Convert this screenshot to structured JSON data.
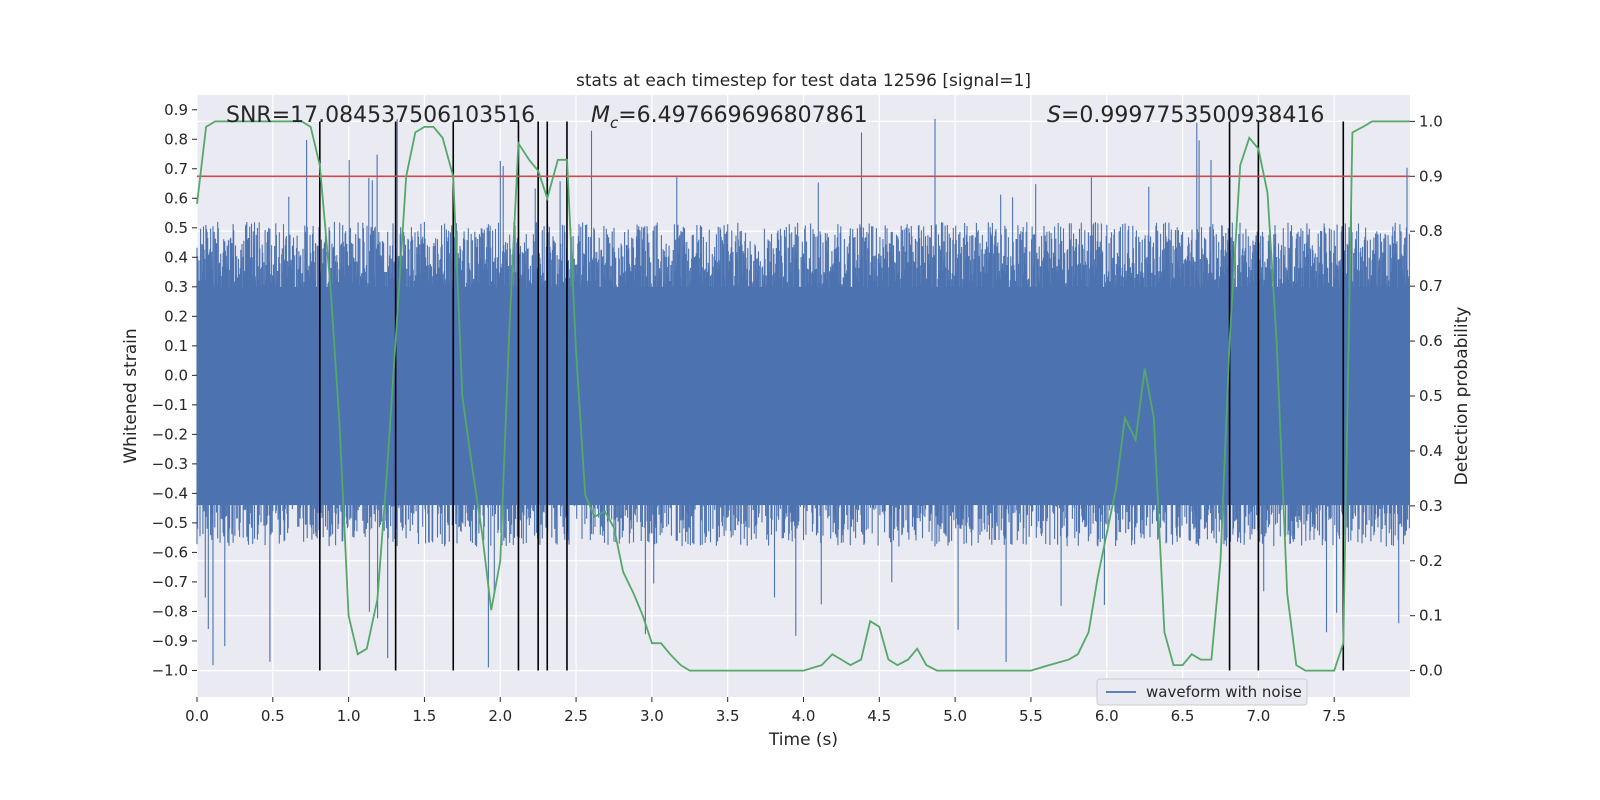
{
  "chart_data": {
    "type": "line",
    "title": "stats at each timestep for test data 12596 [signal=1]",
    "xlabel": "Time (s)",
    "ylabel": "Whitened strain",
    "y2label": "Detection probability",
    "xlim": [
      0.0,
      8.0
    ],
    "ylim": [
      -1.09,
      0.95
    ],
    "y2lim": [
      -0.048,
      1.048
    ],
    "xticks": [
      "0.0",
      "0.5",
      "1.0",
      "1.5",
      "2.0",
      "2.5",
      "3.0",
      "3.5",
      "4.0",
      "4.5",
      "5.0",
      "5.5",
      "6.0",
      "6.5",
      "7.0",
      "7.5"
    ],
    "yticks": [
      "0.9",
      "0.8",
      "0.7",
      "0.6",
      "0.5",
      "0.4",
      "0.3",
      "0.2",
      "0.1",
      "0.0",
      "−0.1",
      "−0.2",
      "−0.3",
      "−0.4",
      "−0.5",
      "−0.6",
      "−0.7",
      "−0.8",
      "−0.9",
      "−1.0"
    ],
    "y2ticks": [
      "1.0",
      "0.9",
      "0.8",
      "0.7",
      "0.6",
      "0.5",
      "0.4",
      "0.3",
      "0.2",
      "0.1",
      "0.0"
    ],
    "annotations": {
      "snr": "SNR=17.084537506103516",
      "mc_symbol": "M",
      "mc_sub": "c",
      "mc_value": "=6.497669696807861",
      "s_symbol": "S",
      "s_value": "=0.9997753500938416"
    },
    "threshold": {
      "value": 0.9,
      "axis": "y2",
      "color": "#c44e52"
    },
    "vlines": [
      0.81,
      1.31,
      1.69,
      2.12,
      2.25,
      2.31,
      2.44,
      6.81,
      7.0,
      7.56
    ],
    "vline_ymin": -1.0,
    "vline_ymax": 0.86,
    "waveform": {
      "name": "waveform with noise",
      "color": "#4c72b0",
      "samples": 2048,
      "envelope": 0.4,
      "outlier_positive_max": 0.87,
      "outlier_negative_min": -1.0
    },
    "probability": {
      "name": "detection probability",
      "color": "#55a868",
      "x": [
        0.0,
        0.06,
        0.12,
        0.19,
        0.25,
        0.31,
        0.38,
        0.44,
        0.5,
        0.56,
        0.62,
        0.69,
        0.75,
        0.81,
        0.88,
        0.94,
        1.0,
        1.06,
        1.12,
        1.19,
        1.25,
        1.31,
        1.38,
        1.44,
        1.5,
        1.56,
        1.62,
        1.69,
        1.75,
        1.81,
        1.88,
        1.94,
        2.0,
        2.06,
        2.12,
        2.19,
        2.25,
        2.31,
        2.38,
        2.44,
        2.5,
        2.56,
        2.62,
        2.69,
        2.75,
        2.81,
        2.88,
        2.94,
        3.0,
        3.06,
        3.12,
        3.19,
        3.25,
        3.5,
        3.75,
        4.0,
        4.12,
        4.19,
        4.25,
        4.31,
        4.38,
        4.44,
        4.5,
        4.56,
        4.62,
        4.69,
        4.75,
        4.81,
        4.88,
        5.0,
        5.25,
        5.5,
        5.62,
        5.75,
        5.81,
        5.88,
        5.94,
        6.0,
        6.06,
        6.12,
        6.19,
        6.25,
        6.31,
        6.38,
        6.44,
        6.5,
        6.56,
        6.62,
        6.69,
        6.75,
        6.81,
        6.88,
        6.94,
        7.0,
        7.06,
        7.12,
        7.19,
        7.25,
        7.31,
        7.38,
        7.44,
        7.5,
        7.56,
        7.62,
        7.69,
        7.75,
        7.81,
        7.88,
        7.94,
        8.0
      ],
      "y": [
        0.85,
        0.99,
        1.0,
        1.0,
        1.0,
        1.0,
        1.0,
        1.0,
        1.0,
        1.0,
        1.0,
        1.0,
        0.99,
        0.92,
        0.7,
        0.45,
        0.1,
        0.03,
        0.04,
        0.13,
        0.35,
        0.6,
        0.9,
        0.98,
        0.99,
        0.99,
        0.97,
        0.9,
        0.5,
        0.38,
        0.25,
        0.11,
        0.2,
        0.62,
        0.96,
        0.93,
        0.91,
        0.86,
        0.93,
        0.93,
        0.58,
        0.32,
        0.28,
        0.29,
        0.26,
        0.18,
        0.14,
        0.1,
        0.05,
        0.05,
        0.03,
        0.01,
        0.0,
        0.0,
        0.0,
        0.0,
        0.01,
        0.03,
        0.02,
        0.01,
        0.02,
        0.09,
        0.08,
        0.02,
        0.01,
        0.02,
        0.04,
        0.01,
        0.0,
        0.0,
        0.0,
        0.0,
        0.01,
        0.02,
        0.03,
        0.07,
        0.17,
        0.25,
        0.33,
        0.46,
        0.42,
        0.55,
        0.46,
        0.07,
        0.01,
        0.01,
        0.03,
        0.02,
        0.02,
        0.2,
        0.6,
        0.92,
        0.97,
        0.95,
        0.87,
        0.6,
        0.14,
        0.01,
        0.0,
        0.0,
        0.0,
        0.0,
        0.05,
        0.98,
        0.99,
        1.0,
        1.0,
        1.0,
        1.0,
        1.0
      ]
    },
    "legend": {
      "label": "waveform with noise",
      "placement": "lower-right"
    }
  }
}
